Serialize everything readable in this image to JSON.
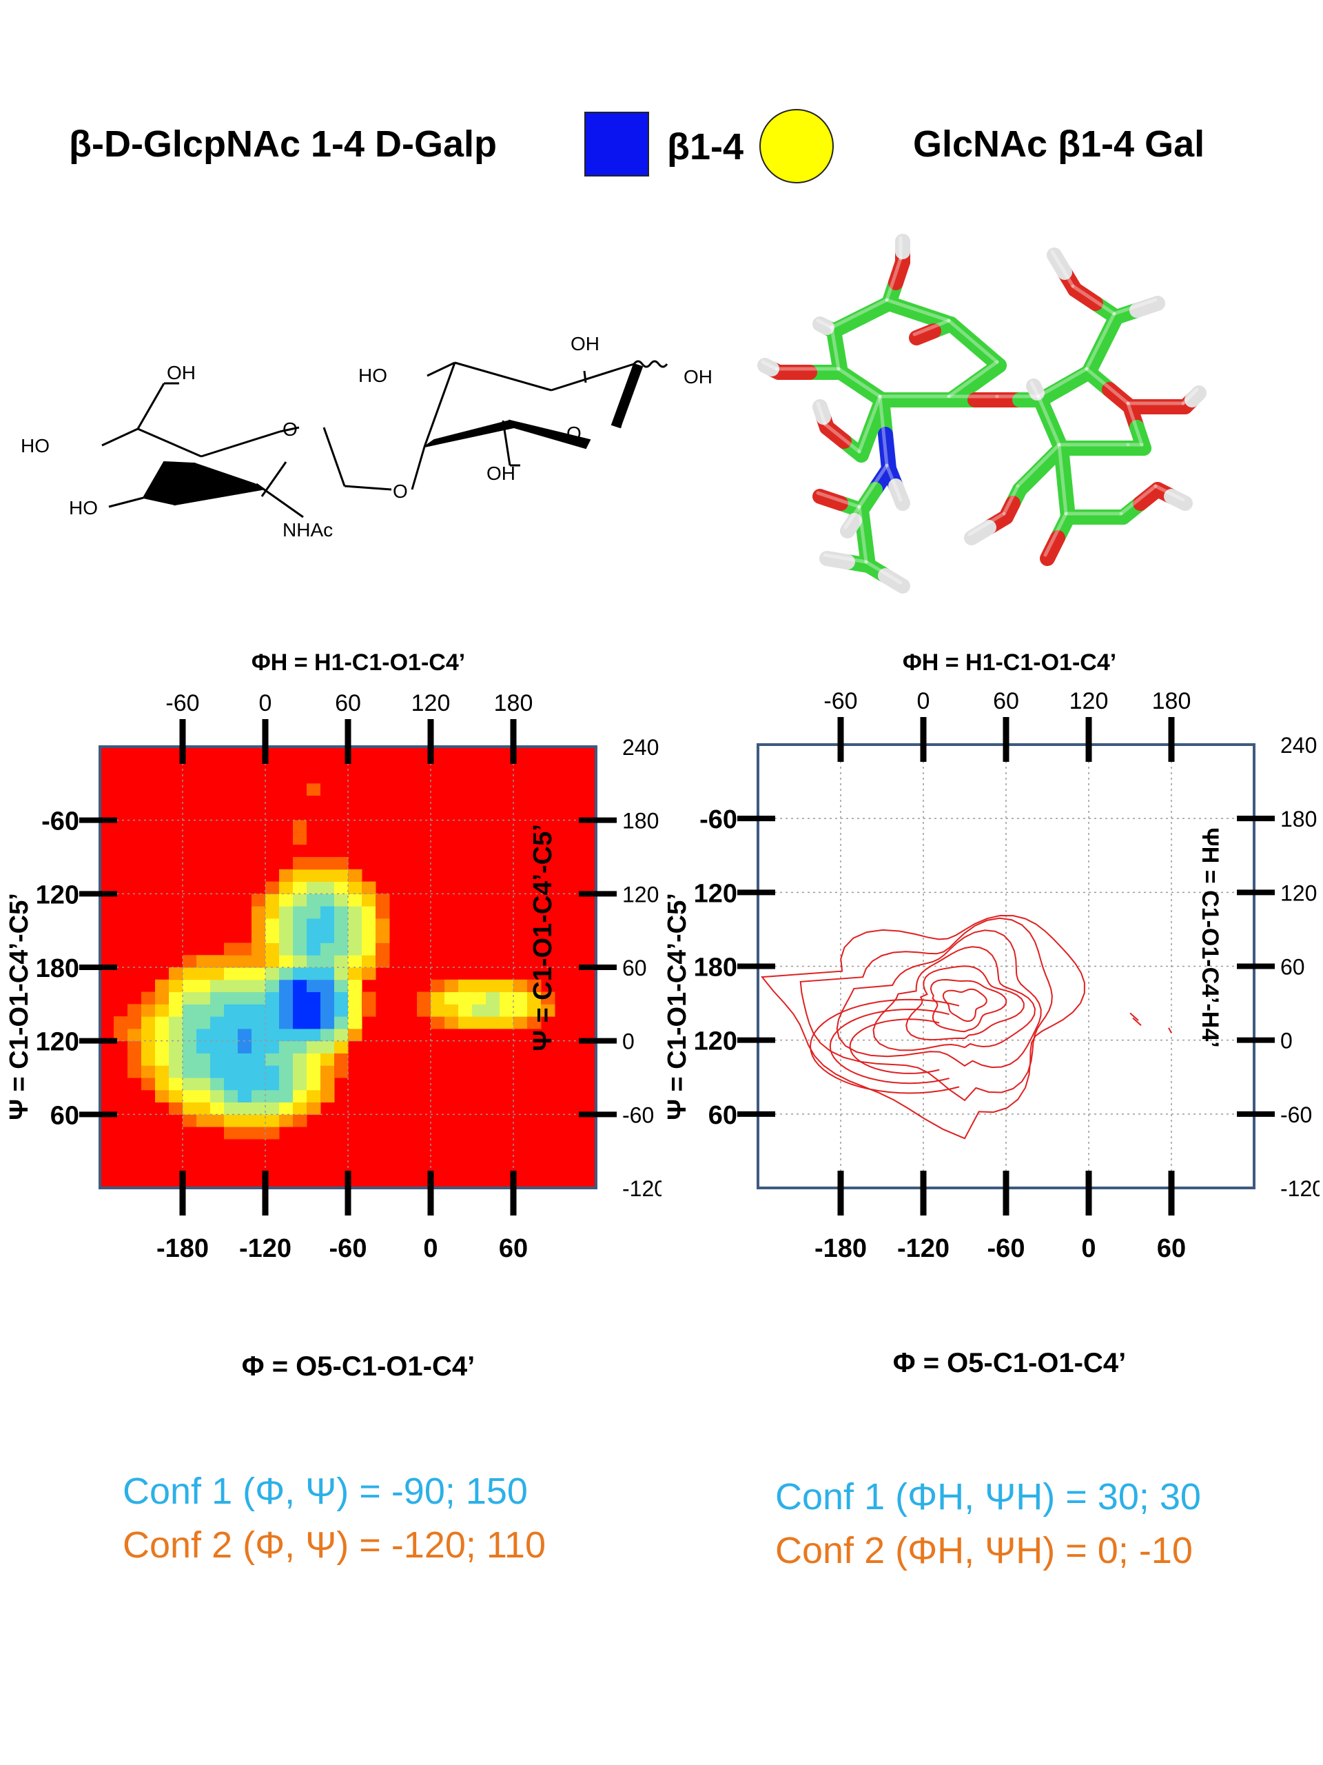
{
  "header": {
    "left_title": "β-D-GlcpNAc 1-4 D-Galp",
    "linkage_label": "β1-4",
    "right_title": "GlcNAc β1-4 Gal",
    "glcnac_symbol_color": "#0a14f0",
    "gal_symbol_color": "#ffff00"
  },
  "structure": {
    "labels": [
      "OH",
      "HO",
      "HO",
      "O",
      "NHAc",
      "O",
      "HO",
      "OH",
      "O",
      "OH",
      "OH"
    ]
  },
  "molecule_3d": {
    "carbon_color": "#3cd23c",
    "oxygen_color": "#dc2a22",
    "nitrogen_color": "#1a2ae0",
    "hydrogen_color": "#e0e0e0"
  },
  "plots": [
    {
      "id": "left",
      "top_axis_label": "ΦH = H1-C1-O1-C4’",
      "top_ticks": [
        "-60",
        "0",
        "60",
        "120",
        "180"
      ],
      "bottom_axis_label": "Φ = O5-C1-O1-C4’",
      "bottom_ticks": [
        "-180",
        "-120",
        "-60",
        "0",
        "60"
      ],
      "left_axis_label": "Ψ = C1-O1-C4’-C5’",
      "left_ticks": [
        "-60",
        "120",
        "180",
        "120",
        "60"
      ],
      "right_axis_label": "Ψ = C1-O1-C4’-C5’",
      "right_ticks": [
        "240",
        "180",
        "120",
        "60",
        "0",
        "-60",
        "-120"
      ]
    },
    {
      "id": "right",
      "top_axis_label": "ΦH = H1-C1-O1-C4’",
      "top_ticks": [
        "-60",
        "0",
        "60",
        "120",
        "180"
      ],
      "bottom_axis_label": "Φ = O5-C1-O1-C4’",
      "bottom_ticks": [
        "-180",
        "-120",
        "-60",
        "0",
        "60"
      ],
      "left_axis_label": "Ψ = C1-O1-C4’-C5’",
      "left_ticks": [
        "-60",
        "120",
        "180",
        "120",
        "60"
      ],
      "right_axis_label": "ΨH = C1-O1-C4’-H4’",
      "right_ticks": [
        "240",
        "180",
        "120",
        "60",
        "0",
        "-60",
        "-120"
      ]
    }
  ],
  "conformations": {
    "left": {
      "conf1": "Conf 1 (Φ, Ψ) = -90; 150",
      "conf2": "Conf 2 (Φ, Ψ) = -120; 110"
    },
    "right": {
      "conf1": "Conf 1 (ΦH, ΨH) = 30; 30",
      "conf2": "Conf 2 (ΦH, ΨH) =  0; -10"
    },
    "colors": {
      "conf1": "#2cb0e8",
      "conf2": "#e8781e"
    }
  },
  "chart_data": [
    {
      "type": "heatmap",
      "title": "",
      "xlabel": "Φ = O5-C1-O1-C4’",
      "ylabel": "Ψ = C1-O1-C4’-C5’",
      "xlim": [
        -240,
        120
      ],
      "ylim": [
        -120,
        240
      ],
      "minimum": {
        "phi": -90,
        "psi": 30
      },
      "secondary_minimum": {
        "phi": -140,
        "psi": 0
      },
      "colorscale": [
        "#0000ff",
        "#00ffff",
        "#ffff00",
        "#ff8c00",
        "#ff0000"
      ],
      "background_color": "#ff0000"
    },
    {
      "type": "contour",
      "title": "",
      "xlabel": "Φ = O5-C1-O1-C4’",
      "ylabel": "ΨH = C1-O1-C4’-H4’",
      "xlim": [
        -240,
        120
      ],
      "ylim": [
        -120,
        240
      ],
      "minimum": {
        "phi": -90,
        "psi": 30
      },
      "contour_color": "#e02020",
      "grid": true
    }
  ]
}
